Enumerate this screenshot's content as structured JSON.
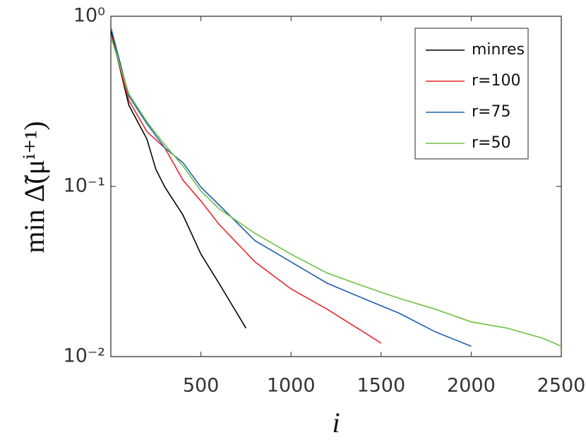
{
  "chart_data": {
    "type": "line",
    "xlabel": "i",
    "ylabel": "min Δ̃(μⁱ⁺¹)",
    "xlim": [
      0,
      2500
    ],
    "ylim": [
      0.01,
      1
    ],
    "ylog": true,
    "xticks": [
      500,
      1000,
      1500,
      2000,
      2500
    ],
    "yticks": [
      {
        "value": 1,
        "label": "10⁰"
      },
      {
        "value": 0.1,
        "label": "10⁻¹"
      },
      {
        "value": 0.01,
        "label": "10⁻²"
      }
    ],
    "legend": "upper right",
    "series": [
      {
        "name": "minres",
        "color": "#000000",
        "x": [
          1,
          100,
          200,
          250,
          300,
          400,
          500,
          600,
          700,
          750
        ],
        "values": [
          0.81,
          0.3,
          0.19,
          0.126,
          0.099,
          0.068,
          0.04,
          0.027,
          0.018,
          0.0147
        ]
      },
      {
        "name": "r=100",
        "color": "#e8262b",
        "x": [
          1,
          100,
          200,
          300,
          400,
          500,
          600,
          800,
          1000,
          1200,
          1400,
          1500
        ],
        "values": [
          0.78,
          0.32,
          0.21,
          0.168,
          0.109,
          0.082,
          0.06,
          0.036,
          0.025,
          0.019,
          0.014,
          0.012
        ]
      },
      {
        "name": "r=75",
        "color": "#1f5eb0",
        "x": [
          1,
          100,
          200,
          300,
          400,
          500,
          600,
          800,
          1000,
          1200,
          1400,
          1600,
          1800,
          2000
        ],
        "values": [
          0.85,
          0.34,
          0.234,
          0.168,
          0.138,
          0.099,
          0.078,
          0.048,
          0.036,
          0.027,
          0.022,
          0.018,
          0.014,
          0.0115
        ]
      },
      {
        "name": "r=50",
        "color": "#6cc242",
        "x": [
          1,
          100,
          200,
          300,
          400,
          500,
          600,
          800,
          1000,
          1200,
          1400,
          1600,
          1800,
          2000,
          2200,
          2400,
          2500
        ],
        "values": [
          0.75,
          0.35,
          0.24,
          0.175,
          0.132,
          0.094,
          0.074,
          0.053,
          0.04,
          0.031,
          0.026,
          0.022,
          0.019,
          0.016,
          0.0147,
          0.0128,
          0.0115
        ]
      }
    ]
  }
}
